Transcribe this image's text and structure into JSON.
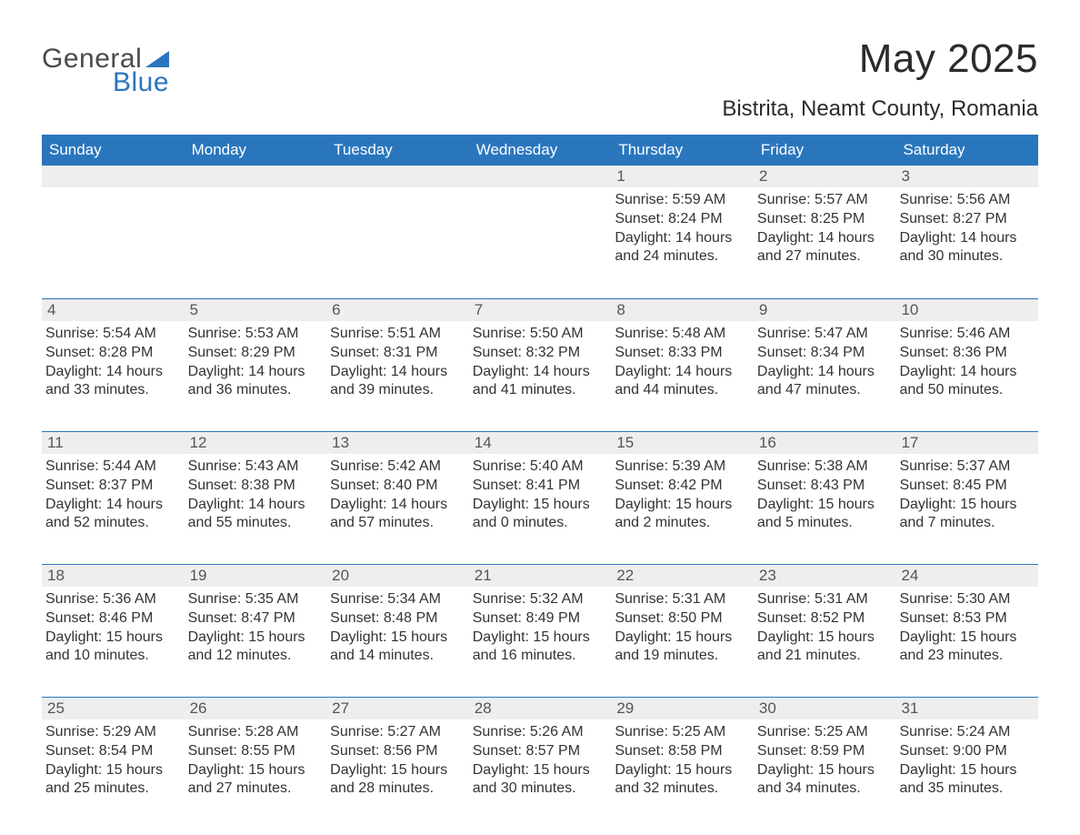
{
  "brand": {
    "word1": "General",
    "word2": "Blue",
    "text_color": "#4a4a4a",
    "accent_color": "#2a76bd"
  },
  "title": {
    "month_year": "May 2025",
    "location": "Bistrita, Neamt County, Romania"
  },
  "styling": {
    "header_bg": "#2a76bd",
    "header_text": "#ffffff",
    "daynum_bg": "#eeeeee",
    "daynum_text": "#555555",
    "row_border": "#2a76bd",
    "body_text": "#333333",
    "page_bg": "#ffffff",
    "title_fontsize": 44,
    "location_fontsize": 24,
    "header_fontsize": 17,
    "cell_fontsize": 16
  },
  "weekdays": [
    "Sunday",
    "Monday",
    "Tuesday",
    "Wednesday",
    "Thursday",
    "Friday",
    "Saturday"
  ],
  "weeks": [
    [
      {
        "empty": true
      },
      {
        "empty": true
      },
      {
        "empty": true
      },
      {
        "empty": true
      },
      {
        "day": "1",
        "sunrise": "Sunrise: 5:59 AM",
        "sunset": "Sunset: 8:24 PM",
        "daylight1": "Daylight: 14 hours",
        "daylight2": "and 24 minutes."
      },
      {
        "day": "2",
        "sunrise": "Sunrise: 5:57 AM",
        "sunset": "Sunset: 8:25 PM",
        "daylight1": "Daylight: 14 hours",
        "daylight2": "and 27 minutes."
      },
      {
        "day": "3",
        "sunrise": "Sunrise: 5:56 AM",
        "sunset": "Sunset: 8:27 PM",
        "daylight1": "Daylight: 14 hours",
        "daylight2": "and 30 minutes."
      }
    ],
    [
      {
        "day": "4",
        "sunrise": "Sunrise: 5:54 AM",
        "sunset": "Sunset: 8:28 PM",
        "daylight1": "Daylight: 14 hours",
        "daylight2": "and 33 minutes."
      },
      {
        "day": "5",
        "sunrise": "Sunrise: 5:53 AM",
        "sunset": "Sunset: 8:29 PM",
        "daylight1": "Daylight: 14 hours",
        "daylight2": "and 36 minutes."
      },
      {
        "day": "6",
        "sunrise": "Sunrise: 5:51 AM",
        "sunset": "Sunset: 8:31 PM",
        "daylight1": "Daylight: 14 hours",
        "daylight2": "and 39 minutes."
      },
      {
        "day": "7",
        "sunrise": "Sunrise: 5:50 AM",
        "sunset": "Sunset: 8:32 PM",
        "daylight1": "Daylight: 14 hours",
        "daylight2": "and 41 minutes."
      },
      {
        "day": "8",
        "sunrise": "Sunrise: 5:48 AM",
        "sunset": "Sunset: 8:33 PM",
        "daylight1": "Daylight: 14 hours",
        "daylight2": "and 44 minutes."
      },
      {
        "day": "9",
        "sunrise": "Sunrise: 5:47 AM",
        "sunset": "Sunset: 8:34 PM",
        "daylight1": "Daylight: 14 hours",
        "daylight2": "and 47 minutes."
      },
      {
        "day": "10",
        "sunrise": "Sunrise: 5:46 AM",
        "sunset": "Sunset: 8:36 PM",
        "daylight1": "Daylight: 14 hours",
        "daylight2": "and 50 minutes."
      }
    ],
    [
      {
        "day": "11",
        "sunrise": "Sunrise: 5:44 AM",
        "sunset": "Sunset: 8:37 PM",
        "daylight1": "Daylight: 14 hours",
        "daylight2": "and 52 minutes."
      },
      {
        "day": "12",
        "sunrise": "Sunrise: 5:43 AM",
        "sunset": "Sunset: 8:38 PM",
        "daylight1": "Daylight: 14 hours",
        "daylight2": "and 55 minutes."
      },
      {
        "day": "13",
        "sunrise": "Sunrise: 5:42 AM",
        "sunset": "Sunset: 8:40 PM",
        "daylight1": "Daylight: 14 hours",
        "daylight2": "and 57 minutes."
      },
      {
        "day": "14",
        "sunrise": "Sunrise: 5:40 AM",
        "sunset": "Sunset: 8:41 PM",
        "daylight1": "Daylight: 15 hours",
        "daylight2": "and 0 minutes."
      },
      {
        "day": "15",
        "sunrise": "Sunrise: 5:39 AM",
        "sunset": "Sunset: 8:42 PM",
        "daylight1": "Daylight: 15 hours",
        "daylight2": "and 2 minutes."
      },
      {
        "day": "16",
        "sunrise": "Sunrise: 5:38 AM",
        "sunset": "Sunset: 8:43 PM",
        "daylight1": "Daylight: 15 hours",
        "daylight2": "and 5 minutes."
      },
      {
        "day": "17",
        "sunrise": "Sunrise: 5:37 AM",
        "sunset": "Sunset: 8:45 PM",
        "daylight1": "Daylight: 15 hours",
        "daylight2": "and 7 minutes."
      }
    ],
    [
      {
        "day": "18",
        "sunrise": "Sunrise: 5:36 AM",
        "sunset": "Sunset: 8:46 PM",
        "daylight1": "Daylight: 15 hours",
        "daylight2": "and 10 minutes."
      },
      {
        "day": "19",
        "sunrise": "Sunrise: 5:35 AM",
        "sunset": "Sunset: 8:47 PM",
        "daylight1": "Daylight: 15 hours",
        "daylight2": "and 12 minutes."
      },
      {
        "day": "20",
        "sunrise": "Sunrise: 5:34 AM",
        "sunset": "Sunset: 8:48 PM",
        "daylight1": "Daylight: 15 hours",
        "daylight2": "and 14 minutes."
      },
      {
        "day": "21",
        "sunrise": "Sunrise: 5:32 AM",
        "sunset": "Sunset: 8:49 PM",
        "daylight1": "Daylight: 15 hours",
        "daylight2": "and 16 minutes."
      },
      {
        "day": "22",
        "sunrise": "Sunrise: 5:31 AM",
        "sunset": "Sunset: 8:50 PM",
        "daylight1": "Daylight: 15 hours",
        "daylight2": "and 19 minutes."
      },
      {
        "day": "23",
        "sunrise": "Sunrise: 5:31 AM",
        "sunset": "Sunset: 8:52 PM",
        "daylight1": "Daylight: 15 hours",
        "daylight2": "and 21 minutes."
      },
      {
        "day": "24",
        "sunrise": "Sunrise: 5:30 AM",
        "sunset": "Sunset: 8:53 PM",
        "daylight1": "Daylight: 15 hours",
        "daylight2": "and 23 minutes."
      }
    ],
    [
      {
        "day": "25",
        "sunrise": "Sunrise: 5:29 AM",
        "sunset": "Sunset: 8:54 PM",
        "daylight1": "Daylight: 15 hours",
        "daylight2": "and 25 minutes."
      },
      {
        "day": "26",
        "sunrise": "Sunrise: 5:28 AM",
        "sunset": "Sunset: 8:55 PM",
        "daylight1": "Daylight: 15 hours",
        "daylight2": "and 27 minutes."
      },
      {
        "day": "27",
        "sunrise": "Sunrise: 5:27 AM",
        "sunset": "Sunset: 8:56 PM",
        "daylight1": "Daylight: 15 hours",
        "daylight2": "and 28 minutes."
      },
      {
        "day": "28",
        "sunrise": "Sunrise: 5:26 AM",
        "sunset": "Sunset: 8:57 PM",
        "daylight1": "Daylight: 15 hours",
        "daylight2": "and 30 minutes."
      },
      {
        "day": "29",
        "sunrise": "Sunrise: 5:25 AM",
        "sunset": "Sunset: 8:58 PM",
        "daylight1": "Daylight: 15 hours",
        "daylight2": "and 32 minutes."
      },
      {
        "day": "30",
        "sunrise": "Sunrise: 5:25 AM",
        "sunset": "Sunset: 8:59 PM",
        "daylight1": "Daylight: 15 hours",
        "daylight2": "and 34 minutes."
      },
      {
        "day": "31",
        "sunrise": "Sunrise: 5:24 AM",
        "sunset": "Sunset: 9:00 PM",
        "daylight1": "Daylight: 15 hours",
        "daylight2": "and 35 minutes."
      }
    ]
  ]
}
